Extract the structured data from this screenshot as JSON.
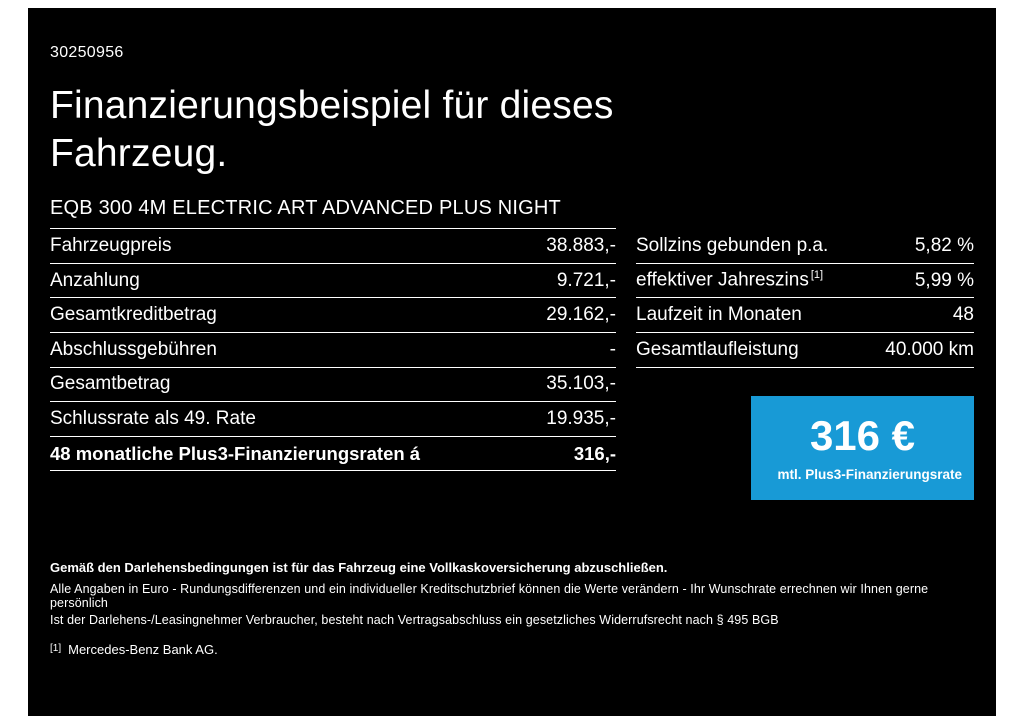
{
  "doc": {
    "id": "30250956",
    "title_line1": "Finanzierungsbeispiel für dieses",
    "title_line2": "Fahrzeug.",
    "subtitle": "EQB 300 4M ELECTRIC ART ADVANCED PLUS NIGHT"
  },
  "left_table": {
    "rows": [
      {
        "label": "Fahrzeugpreis",
        "value": "38.883,-"
      },
      {
        "label": "Anzahlung",
        "value": "9.721,-"
      },
      {
        "label": "Gesamtkreditbetrag",
        "value": "29.162,-"
      },
      {
        "label": "Abschlussgebühren",
        "value": "-"
      },
      {
        "label": "Gesamtbetrag",
        "value": "35.103,-"
      },
      {
        "label": "Schlussrate als 49. Rate",
        "value": "19.935,-"
      },
      {
        "label": "48 monatliche Plus3-Finanzierungsraten á",
        "value": "316,-"
      }
    ]
  },
  "right_table": {
    "rows": [
      {
        "label": "Sollzins gebunden p.a.",
        "value": "5,82 %"
      },
      {
        "label": "effektiver Jahreszins",
        "sup": "[1]",
        "value": "5,99 %"
      },
      {
        "label": "Laufzeit in Monaten",
        "value": "48"
      },
      {
        "label": "Gesamtlaufleistung",
        "value": "40.000 km"
      }
    ]
  },
  "rate_box": {
    "amount": "316 €",
    "caption": "mtl. Plus3-Finanzierungsrate",
    "color": "#189ad6"
  },
  "footer": {
    "bold_note": "Gemäß den Darlehensbedingungen ist für das Fahrzeug eine Vollkaskoversicherung abzuschließen.",
    "note1": "Alle Angaben in Euro - Rundungsdifferenzen und ein individueller Kreditschutzbrief können die Werte verändern - Ihr Wunschrate errechnen wir Ihnen gerne persönlich",
    "note2": "Ist der Darlehens-/Leasingnehmer Verbraucher, besteht nach Vertragsabschluss ein gesetzliches Widerrufsrecht nach § 495 BGB",
    "footnote_marker": "[1]",
    "footnote_text": "Mercedes-Benz Bank AG."
  }
}
